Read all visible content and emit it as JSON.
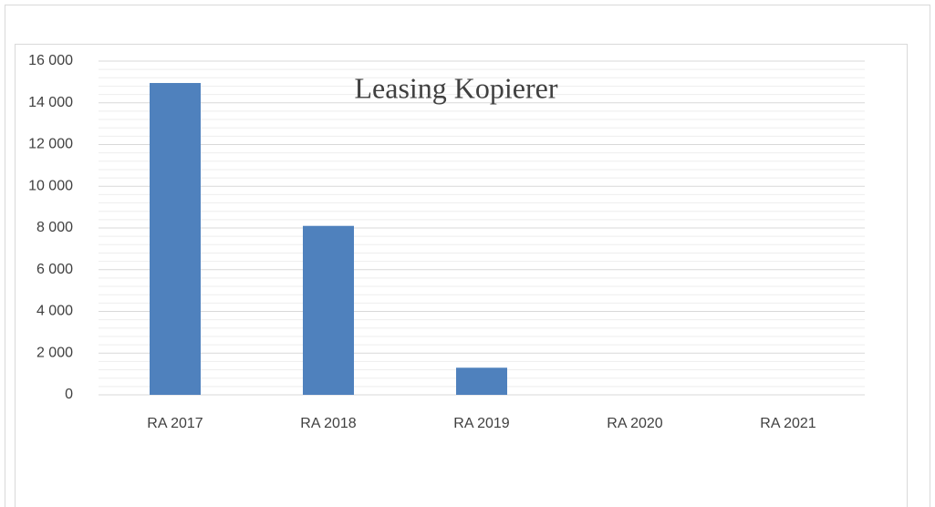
{
  "chart_data": {
    "type": "bar",
    "title": "Leasing Kopierer",
    "categories": [
      "RA 2017",
      "RA 2018",
      "RA 2019",
      "RA 2020",
      "RA 2021"
    ],
    "values": [
      14950,
      8100,
      1300,
      0,
      0
    ],
    "color": "#4f81bd",
    "ylim": [
      0,
      16000
    ],
    "yticks": [
      0,
      {
        "value": 2000,
        "label": "2 000"
      },
      {
        "value": 4000,
        "label": "4 000"
      },
      {
        "value": 6000,
        "label": "6 000"
      },
      {
        "value": 8000,
        "label": "8 000"
      },
      {
        "value": 10000,
        "label": "10 000"
      },
      {
        "value": 12000,
        "label": "12 000"
      },
      {
        "value": 14000,
        "label": "14 000"
      },
      {
        "value": 16000,
        "label": "16 000"
      }
    ],
    "grid": true,
    "minor_grid": 5
  }
}
